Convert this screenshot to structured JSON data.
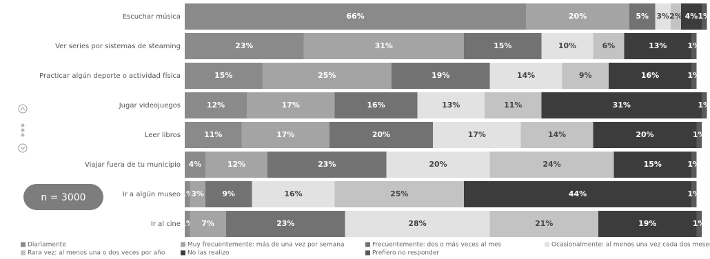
{
  "chart_data": {
    "type": "stacked-bar-horizontal",
    "sample_label": "n = 3000",
    "categories": [
      "Escuchar música",
      "Ver series por sistemas de steaming",
      "Practicar algún deporte o actividad física",
      "Jugar videojuegos",
      "Leer libros",
      "Viajar fuera de tu municipio",
      "Ir a algún museo",
      "Ir al cine"
    ],
    "series": [
      {
        "name": "Diariamente",
        "color": "#8a8a8a",
        "values": [
          66,
          23,
          15,
          12,
          11,
          4,
          1,
          1
        ],
        "value_labels": [
          "66%",
          "23%",
          "15%",
          "12%",
          "11%",
          "4%",
          "1%",
          "1%"
        ]
      },
      {
        "name": "Muy frecuentemente: más de una vez por semana",
        "color": "#a4a4a4",
        "values": [
          20,
          31,
          25,
          17,
          17,
          12,
          3,
          7
        ],
        "value_labels": [
          "20%",
          "31%",
          "25%",
          "17%",
          "17%",
          "12%",
          "3%",
          "7%"
        ]
      },
      {
        "name": "Frecuentemente: dos o más veces al mes",
        "color": "#727272",
        "values": [
          5,
          15,
          19,
          16,
          20,
          23,
          9,
          23
        ],
        "value_labels": [
          "5%",
          "15%",
          "19%",
          "16%",
          "20%",
          "23%",
          "9%",
          "23%"
        ]
      },
      {
        "name": "Ocasionalmente: al menos una vez cada dos meses",
        "color": "#e2e2e2",
        "values": [
          3,
          10,
          14,
          13,
          17,
          20,
          16,
          28
        ],
        "value_labels": [
          "3%",
          "10%",
          "14%",
          "13%",
          "17%",
          "20%",
          "16%",
          "28%"
        ]
      },
      {
        "name": "Rara vez: al menos una o dos veces por año",
        "color": "#c3c3c3",
        "values": [
          2,
          6,
          9,
          11,
          14,
          24,
          25,
          21
        ],
        "value_labels": [
          "2%",
          "6%",
          "9%",
          "11%",
          "14%",
          "24%",
          "25%",
          "21%"
        ]
      },
      {
        "name": "No las realizo",
        "color": "#3c3c3c",
        "values": [
          4,
          13,
          16,
          31,
          20,
          15,
          44,
          19
        ],
        "value_labels": [
          "4%",
          "13%",
          "16%",
          "31%",
          "20%",
          "15%",
          "44%",
          "19%"
        ]
      },
      {
        "name": "Prefiero no responder",
        "color": "#5a5a5a",
        "values": [
          1,
          1,
          1,
          1,
          1,
          1,
          1,
          1
        ],
        "value_labels": [
          "1%",
          "1%",
          "1%",
          "1%",
          "1%",
          "1%",
          "1%",
          "1%"
        ]
      }
    ]
  }
}
